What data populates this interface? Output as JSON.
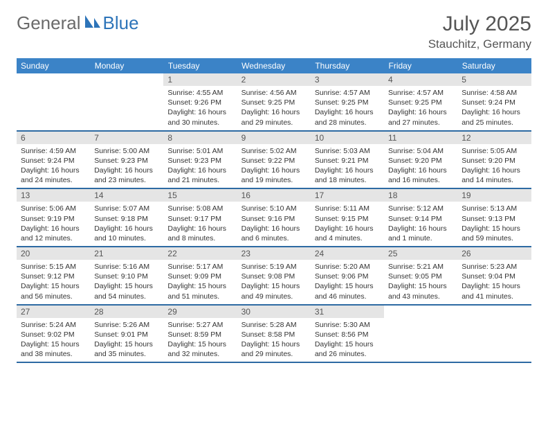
{
  "brand": {
    "part1": "General",
    "part2": "Blue"
  },
  "title": "July 2025",
  "location": "Stauchitz, Germany",
  "colors": {
    "header_bg": "#3b83c7",
    "header_text": "#ffffff",
    "row_border": "#2d6aa3",
    "daynum_bg": "#e5e5e5",
    "logo_blue": "#2d74b9",
    "logo_gray": "#6a6a6a"
  },
  "weekdays": [
    "Sunday",
    "Monday",
    "Tuesday",
    "Wednesday",
    "Thursday",
    "Friday",
    "Saturday"
  ],
  "weeks": [
    [
      null,
      null,
      {
        "n": "1",
        "sr": "Sunrise: 4:55 AM",
        "ss": "Sunset: 9:26 PM",
        "dl": "Daylight: 16 hours and 30 minutes."
      },
      {
        "n": "2",
        "sr": "Sunrise: 4:56 AM",
        "ss": "Sunset: 9:25 PM",
        "dl": "Daylight: 16 hours and 29 minutes."
      },
      {
        "n": "3",
        "sr": "Sunrise: 4:57 AM",
        "ss": "Sunset: 9:25 PM",
        "dl": "Daylight: 16 hours and 28 minutes."
      },
      {
        "n": "4",
        "sr": "Sunrise: 4:57 AM",
        "ss": "Sunset: 9:25 PM",
        "dl": "Daylight: 16 hours and 27 minutes."
      },
      {
        "n": "5",
        "sr": "Sunrise: 4:58 AM",
        "ss": "Sunset: 9:24 PM",
        "dl": "Daylight: 16 hours and 25 minutes."
      }
    ],
    [
      {
        "n": "6",
        "sr": "Sunrise: 4:59 AM",
        "ss": "Sunset: 9:24 PM",
        "dl": "Daylight: 16 hours and 24 minutes."
      },
      {
        "n": "7",
        "sr": "Sunrise: 5:00 AM",
        "ss": "Sunset: 9:23 PM",
        "dl": "Daylight: 16 hours and 23 minutes."
      },
      {
        "n": "8",
        "sr": "Sunrise: 5:01 AM",
        "ss": "Sunset: 9:23 PM",
        "dl": "Daylight: 16 hours and 21 minutes."
      },
      {
        "n": "9",
        "sr": "Sunrise: 5:02 AM",
        "ss": "Sunset: 9:22 PM",
        "dl": "Daylight: 16 hours and 19 minutes."
      },
      {
        "n": "10",
        "sr": "Sunrise: 5:03 AM",
        "ss": "Sunset: 9:21 PM",
        "dl": "Daylight: 16 hours and 18 minutes."
      },
      {
        "n": "11",
        "sr": "Sunrise: 5:04 AM",
        "ss": "Sunset: 9:20 PM",
        "dl": "Daylight: 16 hours and 16 minutes."
      },
      {
        "n": "12",
        "sr": "Sunrise: 5:05 AM",
        "ss": "Sunset: 9:20 PM",
        "dl": "Daylight: 16 hours and 14 minutes."
      }
    ],
    [
      {
        "n": "13",
        "sr": "Sunrise: 5:06 AM",
        "ss": "Sunset: 9:19 PM",
        "dl": "Daylight: 16 hours and 12 minutes."
      },
      {
        "n": "14",
        "sr": "Sunrise: 5:07 AM",
        "ss": "Sunset: 9:18 PM",
        "dl": "Daylight: 16 hours and 10 minutes."
      },
      {
        "n": "15",
        "sr": "Sunrise: 5:08 AM",
        "ss": "Sunset: 9:17 PM",
        "dl": "Daylight: 16 hours and 8 minutes."
      },
      {
        "n": "16",
        "sr": "Sunrise: 5:10 AM",
        "ss": "Sunset: 9:16 PM",
        "dl": "Daylight: 16 hours and 6 minutes."
      },
      {
        "n": "17",
        "sr": "Sunrise: 5:11 AM",
        "ss": "Sunset: 9:15 PM",
        "dl": "Daylight: 16 hours and 4 minutes."
      },
      {
        "n": "18",
        "sr": "Sunrise: 5:12 AM",
        "ss": "Sunset: 9:14 PM",
        "dl": "Daylight: 16 hours and 1 minute."
      },
      {
        "n": "19",
        "sr": "Sunrise: 5:13 AM",
        "ss": "Sunset: 9:13 PM",
        "dl": "Daylight: 15 hours and 59 minutes."
      }
    ],
    [
      {
        "n": "20",
        "sr": "Sunrise: 5:15 AM",
        "ss": "Sunset: 9:12 PM",
        "dl": "Daylight: 15 hours and 56 minutes."
      },
      {
        "n": "21",
        "sr": "Sunrise: 5:16 AM",
        "ss": "Sunset: 9:10 PM",
        "dl": "Daylight: 15 hours and 54 minutes."
      },
      {
        "n": "22",
        "sr": "Sunrise: 5:17 AM",
        "ss": "Sunset: 9:09 PM",
        "dl": "Daylight: 15 hours and 51 minutes."
      },
      {
        "n": "23",
        "sr": "Sunrise: 5:19 AM",
        "ss": "Sunset: 9:08 PM",
        "dl": "Daylight: 15 hours and 49 minutes."
      },
      {
        "n": "24",
        "sr": "Sunrise: 5:20 AM",
        "ss": "Sunset: 9:06 PM",
        "dl": "Daylight: 15 hours and 46 minutes."
      },
      {
        "n": "25",
        "sr": "Sunrise: 5:21 AM",
        "ss": "Sunset: 9:05 PM",
        "dl": "Daylight: 15 hours and 43 minutes."
      },
      {
        "n": "26",
        "sr": "Sunrise: 5:23 AM",
        "ss": "Sunset: 9:04 PM",
        "dl": "Daylight: 15 hours and 41 minutes."
      }
    ],
    [
      {
        "n": "27",
        "sr": "Sunrise: 5:24 AM",
        "ss": "Sunset: 9:02 PM",
        "dl": "Daylight: 15 hours and 38 minutes."
      },
      {
        "n": "28",
        "sr": "Sunrise: 5:26 AM",
        "ss": "Sunset: 9:01 PM",
        "dl": "Daylight: 15 hours and 35 minutes."
      },
      {
        "n": "29",
        "sr": "Sunrise: 5:27 AM",
        "ss": "Sunset: 8:59 PM",
        "dl": "Daylight: 15 hours and 32 minutes."
      },
      {
        "n": "30",
        "sr": "Sunrise: 5:28 AM",
        "ss": "Sunset: 8:58 PM",
        "dl": "Daylight: 15 hours and 29 minutes."
      },
      {
        "n": "31",
        "sr": "Sunrise: 5:30 AM",
        "ss": "Sunset: 8:56 PM",
        "dl": "Daylight: 15 hours and 26 minutes."
      },
      null,
      null
    ]
  ]
}
